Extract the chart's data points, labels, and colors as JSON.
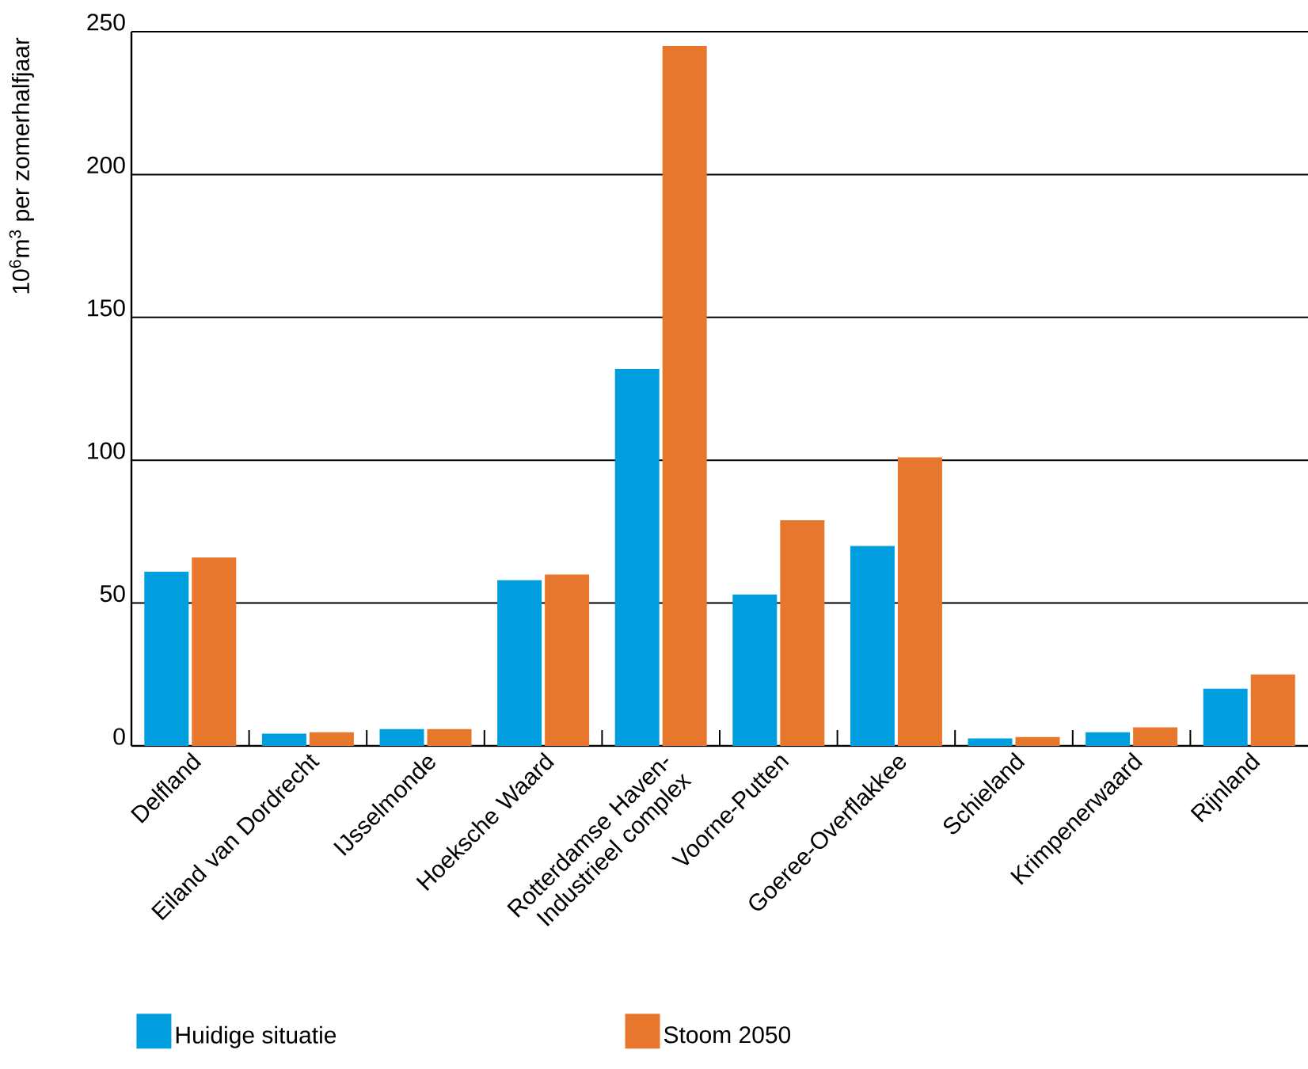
{
  "chart_data": {
    "type": "bar",
    "ylabel": "10$^{6}$m$^{3}$ per zomerhalfjaar",
    "categories": [
      "Delfland",
      "Eiland van Dordrecht",
      "IJsselmonde",
      "Hoeksche Waard",
      "Rotterdamse Haven-Industrieel complex",
      "Voorne-Putten",
      "Goeree-Overflakkee",
      "Schieland",
      "Krimpenerwaard",
      "Rijnland"
    ],
    "series": [
      {
        "name": "Huidige situatie",
        "color": "#009ede",
        "values": [
          61,
          4.3,
          5.9,
          58,
          132,
          53,
          70,
          2.6,
          4.8,
          20
        ]
      },
      {
        "name": "Stoom 2050",
        "color": "#e8772e",
        "values": [
          66,
          4.8,
          5.9,
          60,
          245,
          79,
          101,
          3.1,
          6.5,
          25
        ]
      }
    ],
    "ylim": [
      0,
      250
    ],
    "yticks": [
      0,
      50,
      100,
      150,
      200,
      250
    ],
    "grid": "y",
    "legend": "bottom"
  }
}
